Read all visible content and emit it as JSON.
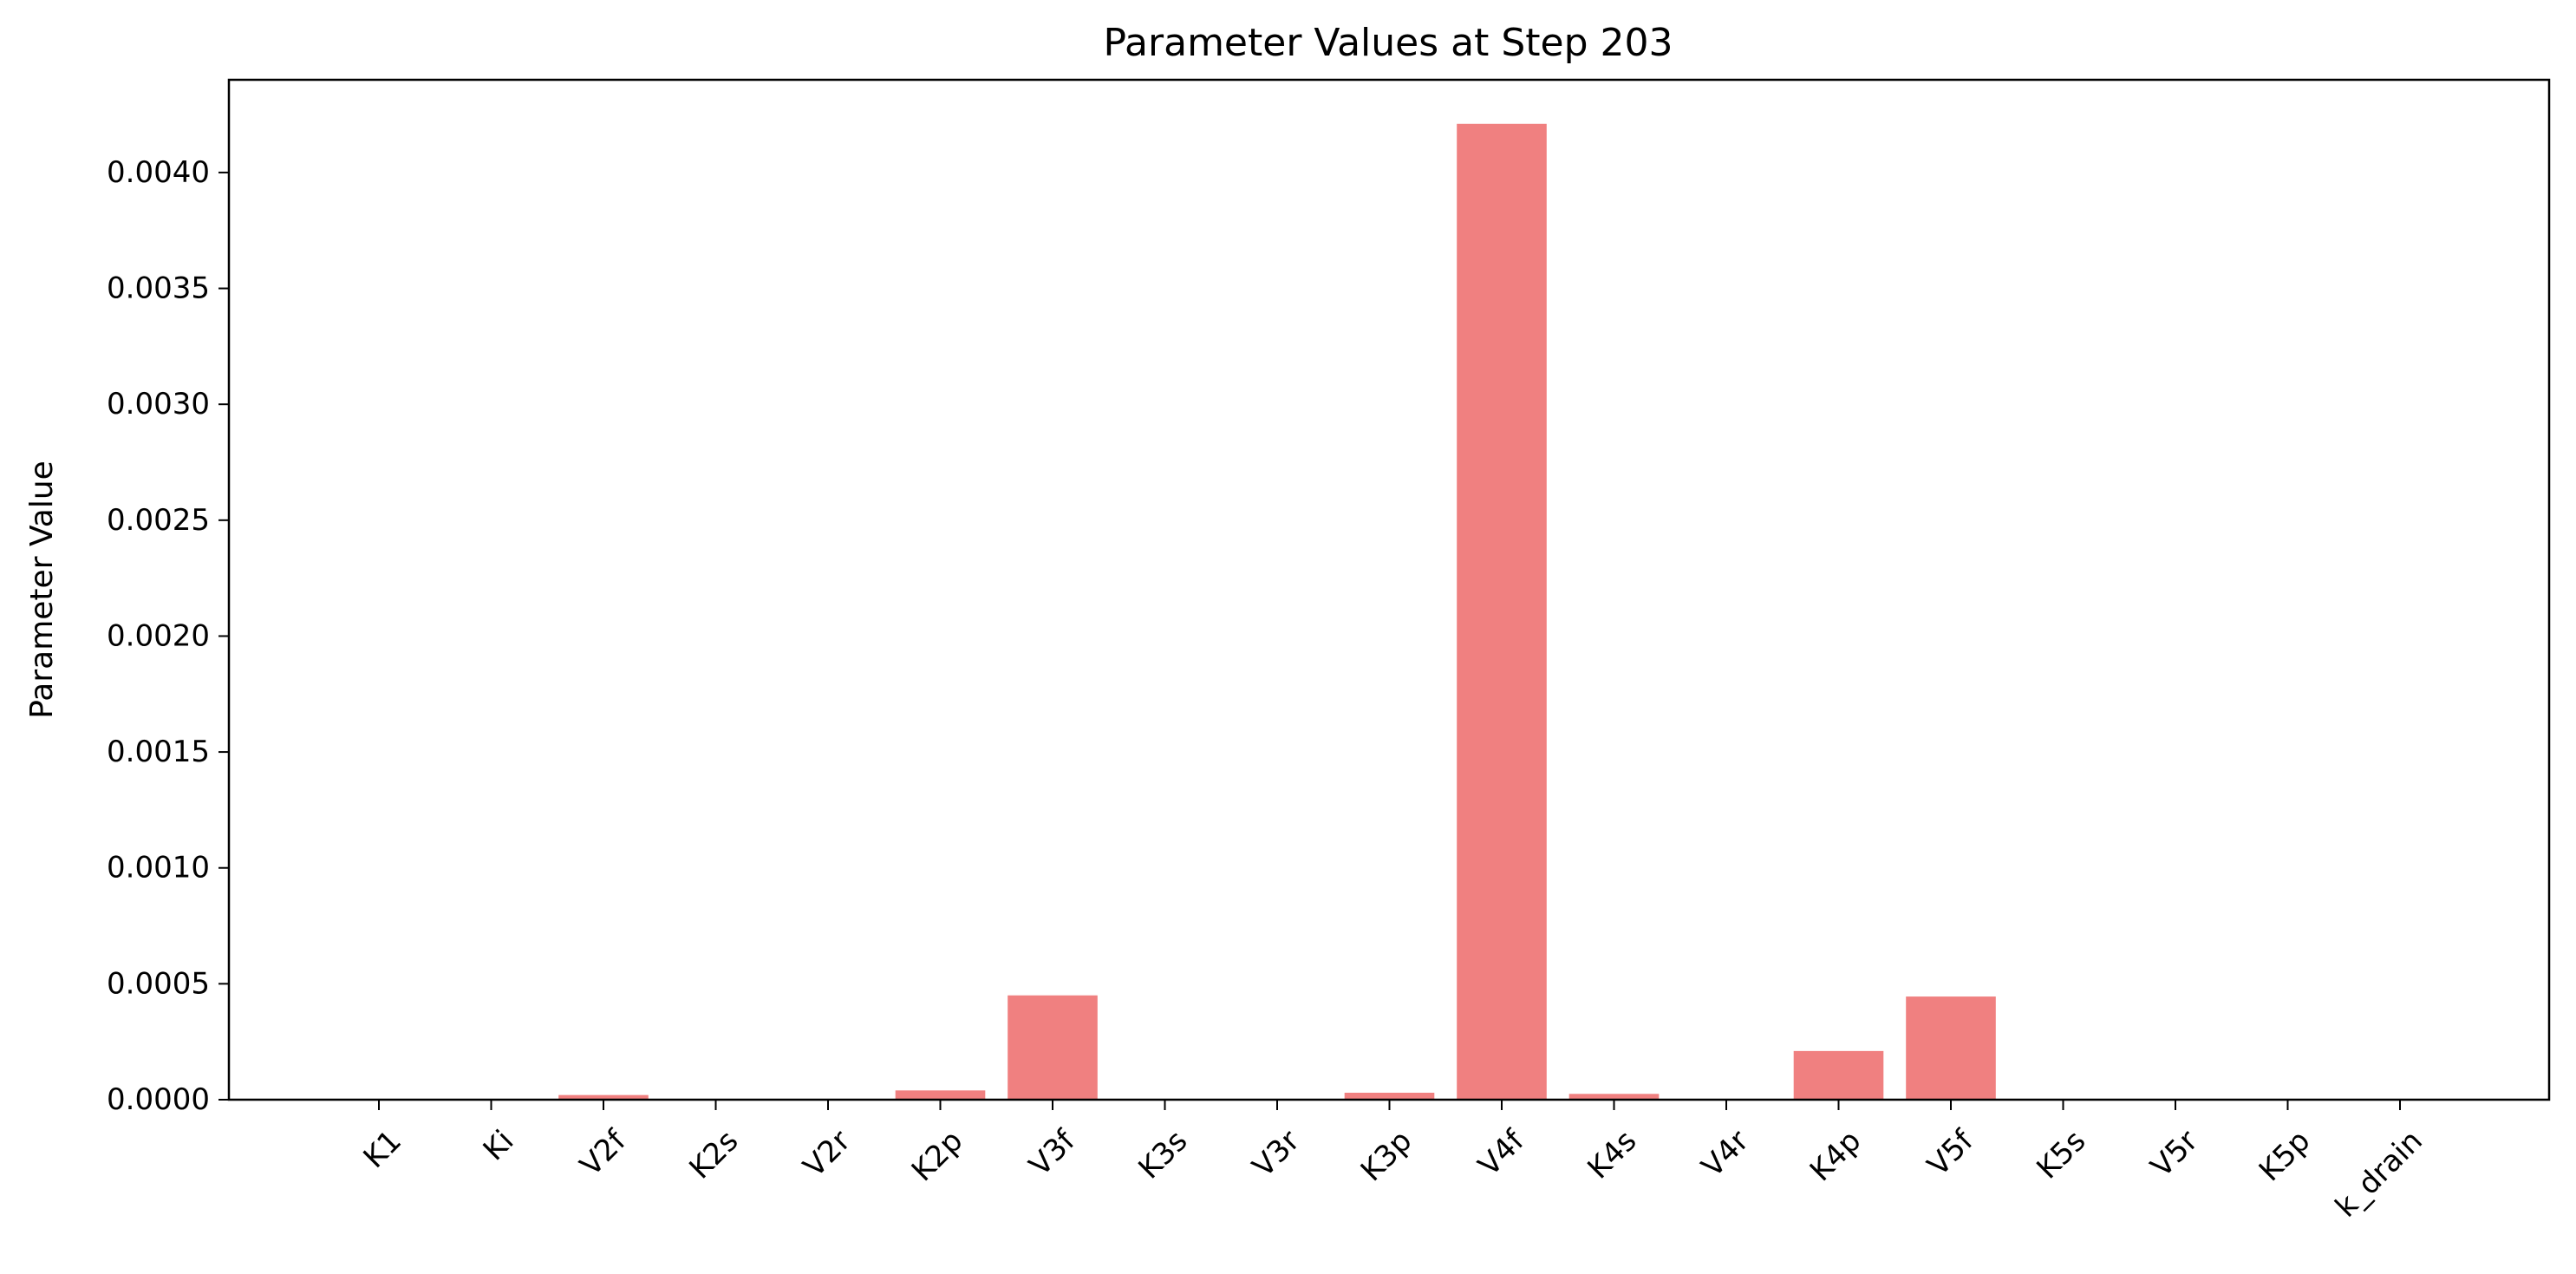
{
  "chart_data": {
    "type": "bar",
    "title": "Parameter Values at Step 203",
    "xlabel": "",
    "ylabel": "Parameter Value",
    "categories": [
      "K1",
      "Ki",
      "V2f",
      "K2s",
      "V2r",
      "K2p",
      "V3f",
      "K3s",
      "V3r",
      "K3p",
      "V4f",
      "K4s",
      "V4r",
      "K4p",
      "V5f",
      "K5s",
      "V5r",
      "K5p",
      "k_drain"
    ],
    "values": [
      0.0,
      0.0,
      2e-05,
      0.0,
      0.0,
      4e-05,
      0.00045,
      0.0,
      0.0,
      3e-05,
      0.00421,
      2.5e-05,
      0.0,
      0.00021,
      0.000445,
      0.0,
      0.0,
      0.0,
      0.0
    ],
    "ylim": [
      0,
      0.0044
    ],
    "yticks": [
      "0.0000",
      "0.0005",
      "0.0010",
      "0.0015",
      "0.0020",
      "0.0025",
      "0.0030",
      "0.0035",
      "0.0040"
    ],
    "grid": false,
    "legend": false,
    "colors": {
      "bar": "#f08080",
      "axis": "#000000",
      "text": "#000000",
      "background": "#ffffff"
    }
  }
}
